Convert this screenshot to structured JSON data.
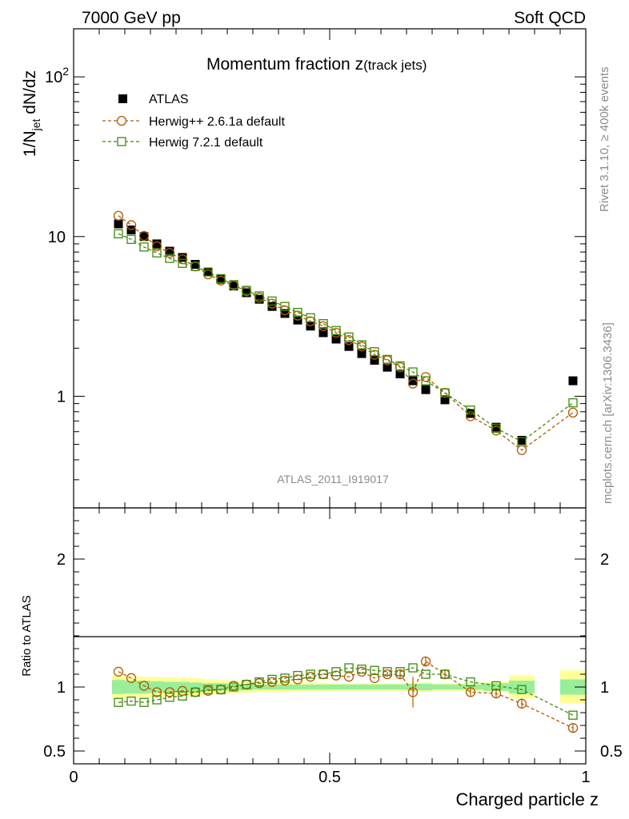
{
  "header": {
    "energy": "7000 GeV pp",
    "category": "Soft QCD"
  },
  "side_labels": {
    "rivet": "Rivet 3.1.10, ≥ 400k events",
    "mcplots": "mcplots.cern.ch [arXiv:1306.3436]"
  },
  "analysis_id": "ATLAS_2011_I919017",
  "chart_data": [
    {
      "type": "scatter",
      "panel": "main",
      "title_main": "Momentum fraction z",
      "title_sub": "(track jets)",
      "ylabel_base": "1/N",
      "ylabel_sub": "jet",
      "ylabel_tail": " dN/dz",
      "yscale": "log",
      "ylim": [
        0.2,
        200
      ],
      "xlim": [
        0,
        1
      ],
      "yticks": [
        {
          "value": 1,
          "label": "1"
        },
        {
          "value": 10,
          "label": "10"
        },
        {
          "value": 100,
          "label": "10",
          "exp": "2"
        }
      ],
      "legend_position": "top-left",
      "series": [
        {
          "name": "ATLAS",
          "marker": "filled-square",
          "color": "#000000",
          "x": [
            0.0875,
            0.1125,
            0.1375,
            0.1625,
            0.1875,
            0.2125,
            0.2375,
            0.2625,
            0.2875,
            0.3125,
            0.3375,
            0.3625,
            0.3875,
            0.4125,
            0.4375,
            0.4625,
            0.4875,
            0.5125,
            0.5375,
            0.5625,
            0.5875,
            0.6125,
            0.6375,
            0.6625,
            0.6875,
            0.725,
            0.775,
            0.825,
            0.875,
            0.975
          ],
          "y": [
            12.0,
            11.0,
            10.0,
            9.0,
            8.1,
            7.4,
            6.7,
            6.0,
            5.4,
            4.9,
            4.45,
            4.05,
            3.65,
            3.3,
            3.0,
            2.75,
            2.5,
            2.28,
            2.05,
            1.85,
            1.68,
            1.52,
            1.38,
            1.25,
            1.1,
            0.95,
            0.78,
            0.64,
            0.53,
            1.25
          ]
        },
        {
          "name": "Herwig++ 2.6.1a default",
          "marker": "open-circle",
          "color": "#b35a00",
          "x": [
            0.0875,
            0.1125,
            0.1375,
            0.1625,
            0.1875,
            0.2125,
            0.2375,
            0.2625,
            0.2875,
            0.3125,
            0.3375,
            0.3625,
            0.3875,
            0.4125,
            0.4375,
            0.4625,
            0.4875,
            0.5125,
            0.5375,
            0.5625,
            0.5875,
            0.6125,
            0.6375,
            0.6625,
            0.6875,
            0.725,
            0.775,
            0.825,
            0.875,
            0.975
          ],
          "y": [
            13.5,
            11.8,
            10.1,
            8.7,
            7.9,
            7.2,
            6.5,
            5.8,
            5.3,
            4.95,
            4.55,
            4.15,
            3.8,
            3.45,
            3.2,
            2.95,
            2.75,
            2.5,
            2.25,
            2.05,
            1.82,
            1.68,
            1.52,
            1.2,
            1.32,
            1.05,
            0.75,
            0.61,
            0.46,
            0.79
          ]
        },
        {
          "name": "Herwig 7.2.1 default",
          "marker": "open-square",
          "color": "#3c8a0a",
          "x": [
            0.0875,
            0.1125,
            0.1375,
            0.1625,
            0.1875,
            0.2125,
            0.2375,
            0.2625,
            0.2875,
            0.3125,
            0.3375,
            0.3625,
            0.3875,
            0.4125,
            0.4375,
            0.4625,
            0.4875,
            0.5125,
            0.5375,
            0.5625,
            0.5875,
            0.6125,
            0.6375,
            0.6625,
            0.6875,
            0.725,
            0.775,
            0.825,
            0.875,
            0.975
          ],
          "y": [
            10.4,
            9.6,
            8.6,
            7.9,
            7.3,
            6.8,
            6.5,
            6.0,
            5.45,
            5.0,
            4.6,
            4.25,
            3.95,
            3.65,
            3.35,
            3.1,
            2.85,
            2.58,
            2.35,
            2.1,
            1.9,
            1.7,
            1.55,
            1.42,
            1.25,
            1.05,
            0.82,
            0.63,
            0.52,
            0.91
          ]
        }
      ]
    },
    {
      "type": "scatter",
      "panel": "ratio",
      "ylabel": "Ratio to ATLAS",
      "xlabel": "Charged particle z",
      "ylim": [
        0.4,
        2.4
      ],
      "xlim": [
        0,
        1
      ],
      "yticks": [
        {
          "value": 0.5,
          "label": "0.5"
        },
        {
          "value": 1,
          "label": "1"
        },
        {
          "value": 2,
          "label": "2"
        }
      ],
      "xticks": [
        {
          "value": 0,
          "label": "0"
        },
        {
          "value": 0.5,
          "label": "0.5"
        },
        {
          "value": 1,
          "label": "1"
        }
      ],
      "reference_line": 1,
      "bands": {
        "bin_edges": [
          0.075,
          0.1,
          0.125,
          0.15,
          0.175,
          0.2,
          0.225,
          0.25,
          0.275,
          0.3,
          0.325,
          0.35,
          0.375,
          0.4,
          0.425,
          0.45,
          0.475,
          0.5,
          0.525,
          0.55,
          0.575,
          0.6,
          0.625,
          0.65,
          0.675,
          0.7,
          0.75,
          0.8,
          0.85,
          0.9,
          0.95,
          1.0
        ],
        "stat_halfwidth": [
          0.055,
          0.05,
          0.05,
          0.045,
          0.04,
          0.04,
          0.035,
          0.03,
          0.03,
          0.025,
          0.025,
          0.02,
          0.02,
          0.02,
          0.02,
          0.02,
          0.02,
          0.02,
          0.02,
          0.02,
          0.02,
          0.02,
          0.02,
          0.025,
          0.025,
          0.02,
          0.02,
          0.03,
          0.05,
          0.0,
          0.06
        ],
        "total_halfwidth": [
          0.09,
          0.08,
          0.08,
          0.08,
          0.075,
          0.07,
          0.07,
          0.06,
          0.055,
          0.05,
          0.045,
          0.04,
          0.04,
          0.04,
          0.035,
          0.035,
          0.035,
          0.03,
          0.03,
          0.03,
          0.03,
          0.03,
          0.03,
          0.035,
          0.035,
          0.03,
          0.03,
          0.04,
          0.09,
          0.0,
          0.13
        ],
        "stat_color": "#99ee99",
        "total_color": "#ffff99"
      },
      "series": [
        {
          "name": "Herwig++ 2.6.1a default",
          "marker": "open-circle",
          "color": "#b35a00",
          "x": [
            0.0875,
            0.1125,
            0.1375,
            0.1625,
            0.1875,
            0.2125,
            0.2375,
            0.2625,
            0.2875,
            0.3125,
            0.3375,
            0.3625,
            0.3875,
            0.4125,
            0.4375,
            0.4625,
            0.4875,
            0.5125,
            0.5375,
            0.5625,
            0.5875,
            0.6125,
            0.6375,
            0.6625,
            0.6875,
            0.725,
            0.775,
            0.825,
            0.875,
            0.975
          ],
          "y": [
            1.12,
            1.07,
            1.01,
            0.96,
            0.96,
            0.97,
            0.96,
            0.97,
            0.98,
            1.01,
            1.02,
            1.03,
            1.04,
            1.05,
            1.06,
            1.08,
            1.1,
            1.09,
            1.08,
            1.12,
            1.07,
            1.1,
            1.1,
            0.96,
            1.2,
            1.1,
            0.96,
            0.95,
            0.87,
            0.68
          ],
          "yerr": [
            0.0,
            0.0,
            0.0,
            0.0,
            0.0,
            0.0,
            0.0,
            0.0,
            0.0,
            0.0,
            0.0,
            0.0,
            0.0,
            0.0,
            0.0,
            0.0,
            0.0,
            0.0,
            0.0,
            0.0,
            0.0,
            0.02,
            0.04,
            0.12,
            0.04,
            0.03,
            0.03,
            0.03,
            0.04,
            0.03
          ]
        },
        {
          "name": "Herwig 7.2.1 default",
          "marker": "open-square",
          "color": "#3c8a0a",
          "x": [
            0.0875,
            0.1125,
            0.1375,
            0.1625,
            0.1875,
            0.2125,
            0.2375,
            0.2625,
            0.2875,
            0.3125,
            0.3375,
            0.3625,
            0.3875,
            0.4125,
            0.4375,
            0.4625,
            0.4875,
            0.5125,
            0.5375,
            0.5625,
            0.5875,
            0.6125,
            0.6375,
            0.6625,
            0.6875,
            0.725,
            0.775,
            0.825,
            0.875,
            0.975
          ],
          "y": [
            0.88,
            0.89,
            0.88,
            0.9,
            0.92,
            0.93,
            0.96,
            0.98,
            0.98,
            1.0,
            1.02,
            1.04,
            1.06,
            1.07,
            1.09,
            1.1,
            1.1,
            1.12,
            1.15,
            1.14,
            1.13,
            1.12,
            1.12,
            1.15,
            1.1,
            1.1,
            1.04,
            1.01,
            0.98,
            0.78
          ],
          "yerr": [
            0,
            0,
            0,
            0,
            0,
            0,
            0,
            0,
            0,
            0,
            0,
            0,
            0,
            0,
            0,
            0,
            0,
            0,
            0,
            0,
            0,
            0,
            0,
            0,
            0,
            0,
            0,
            0,
            0,
            0
          ]
        }
      ]
    }
  ]
}
